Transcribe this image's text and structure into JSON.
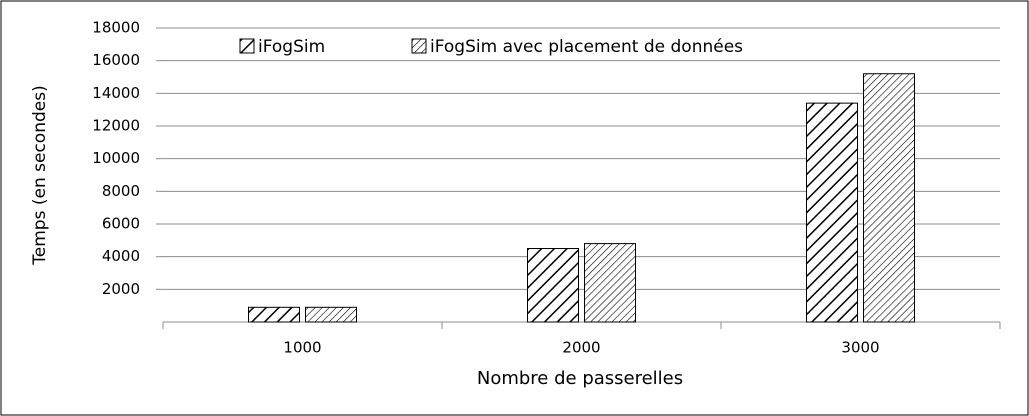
{
  "chart_data": {
    "type": "bar",
    "categories": [
      "1000",
      "2000",
      "3000"
    ],
    "series": [
      {
        "name": "iFogSim",
        "color": "#000000",
        "values": [
          900,
          4500,
          13400
        ]
      },
      {
        "name": "iFogSim avec placement de données",
        "color": "#000000",
        "values": [
          900,
          4800,
          15200
        ]
      }
    ],
    "x_label": "Nombre de passerelles",
    "y_label": "Temps (en secondes)",
    "ylim": [
      0,
      18000
    ],
    "yticks": [
      2000,
      4000,
      6000,
      8000,
      10000,
      12000,
      14000,
      16000,
      18000
    ],
    "grid": true,
    "legend": "top"
  }
}
